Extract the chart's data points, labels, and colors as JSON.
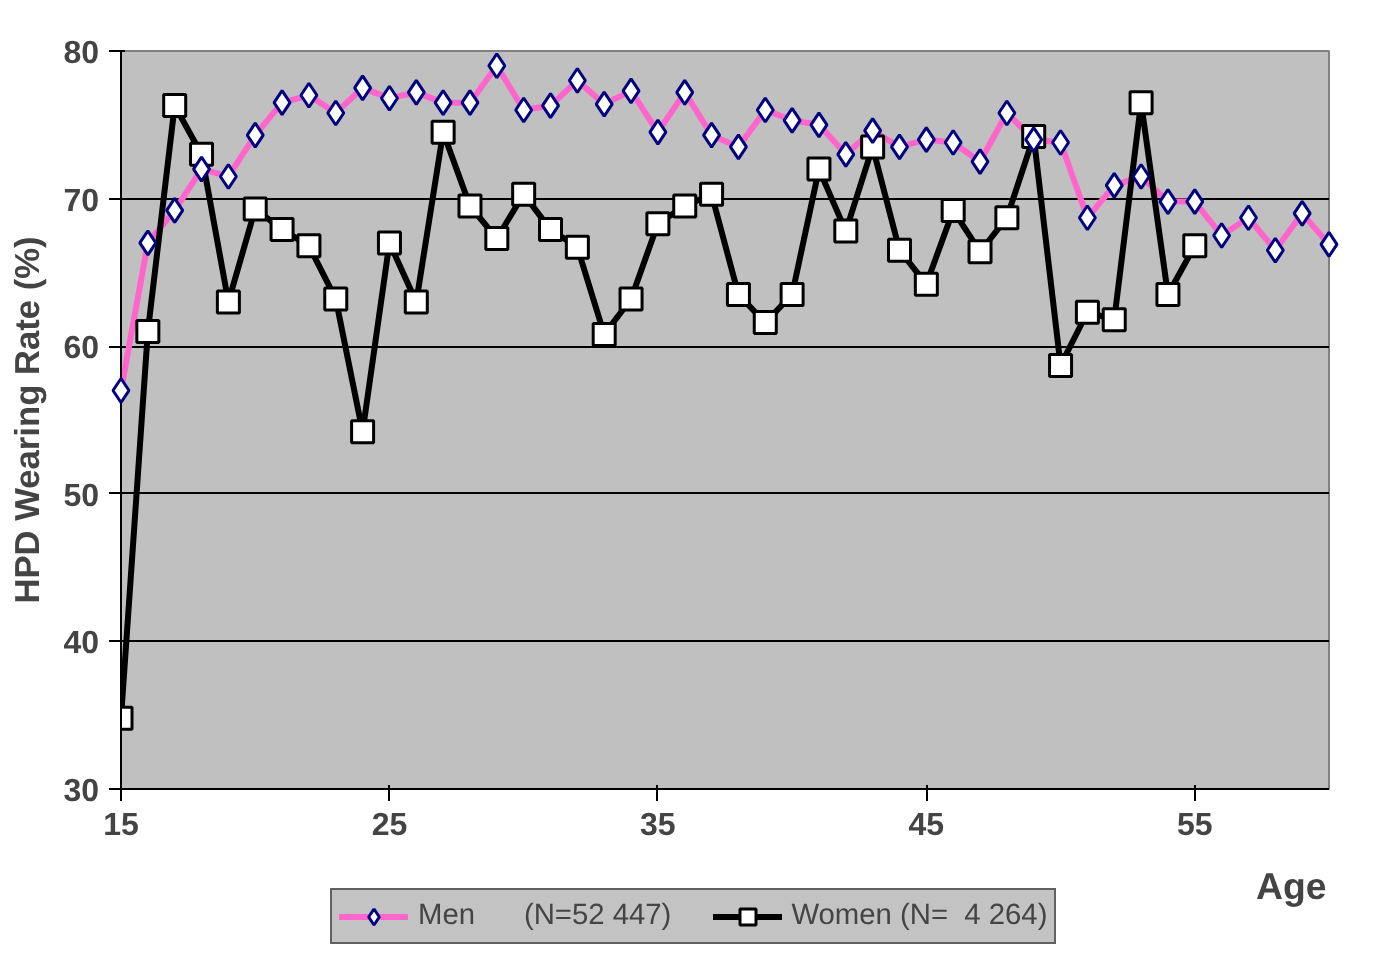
{
  "chart_data": {
    "type": "line",
    "ylabel": "HPD Wearing Rate (%)",
    "xlabel": "Age",
    "xlim": [
      15,
      60
    ],
    "xticks": [
      15,
      25,
      35,
      45,
      55
    ],
    "ylim": [
      30,
      80
    ],
    "yticks": [
      30,
      40,
      50,
      60,
      70,
      80
    ],
    "grid": "y",
    "legend": "bottom",
    "series": [
      {
        "name": "Men      (N=52 447)",
        "color": "#ff66cc",
        "marker": "diamond",
        "x": [
          15,
          16,
          17,
          18,
          19,
          20,
          21,
          22,
          23,
          24,
          25,
          26,
          27,
          28,
          29,
          30,
          31,
          32,
          33,
          34,
          35,
          36,
          37,
          38,
          39,
          40,
          41,
          42,
          43,
          44,
          45,
          46,
          47,
          48,
          49,
          50,
          51,
          52,
          53,
          54,
          55,
          56,
          57,
          58,
          59,
          60
        ],
        "values": [
          57,
          67,
          69.2,
          72,
          71.5,
          74.3,
          76.5,
          77,
          75.8,
          77.5,
          76.8,
          77.2,
          76.5,
          76.5,
          79,
          76,
          76.3,
          78,
          76.4,
          77.3,
          74.5,
          77.2,
          74.3,
          73.5,
          76,
          75.3,
          75,
          73,
          74.6,
          73.5,
          74,
          73.8,
          72.5,
          75.8,
          74,
          73.8,
          68.7,
          70.9,
          71.5,
          69.8,
          69.8,
          67.5,
          68.7,
          66.5,
          69,
          66.9
        ]
      },
      {
        "name": "Women (N=  4 264)",
        "color": "#000000",
        "marker": "square",
        "x": [
          15,
          16,
          17,
          18,
          19,
          20,
          21,
          22,
          23,
          24,
          25,
          26,
          27,
          28,
          29,
          30,
          31,
          32,
          33,
          34,
          35,
          36,
          37,
          38,
          39,
          40,
          41,
          42,
          43,
          44,
          45,
          46,
          47,
          48,
          49,
          50,
          51,
          52,
          53,
          54,
          55
        ],
        "values": [
          34.8,
          61,
          76.3,
          73,
          63,
          69.3,
          67.9,
          66.8,
          63.2,
          54.2,
          67,
          63,
          74.5,
          69.5,
          67.3,
          70.3,
          67.9,
          66.7,
          60.8,
          63.2,
          68.3,
          69.5,
          70.3,
          63.5,
          61.6,
          63.5,
          72,
          67.8,
          73.5,
          66.5,
          64.2,
          69.2,
          66.4,
          68.7,
          74.2,
          58.7,
          62.3,
          61.8,
          76.5,
          63.5,
          66.8
        ]
      }
    ]
  }
}
